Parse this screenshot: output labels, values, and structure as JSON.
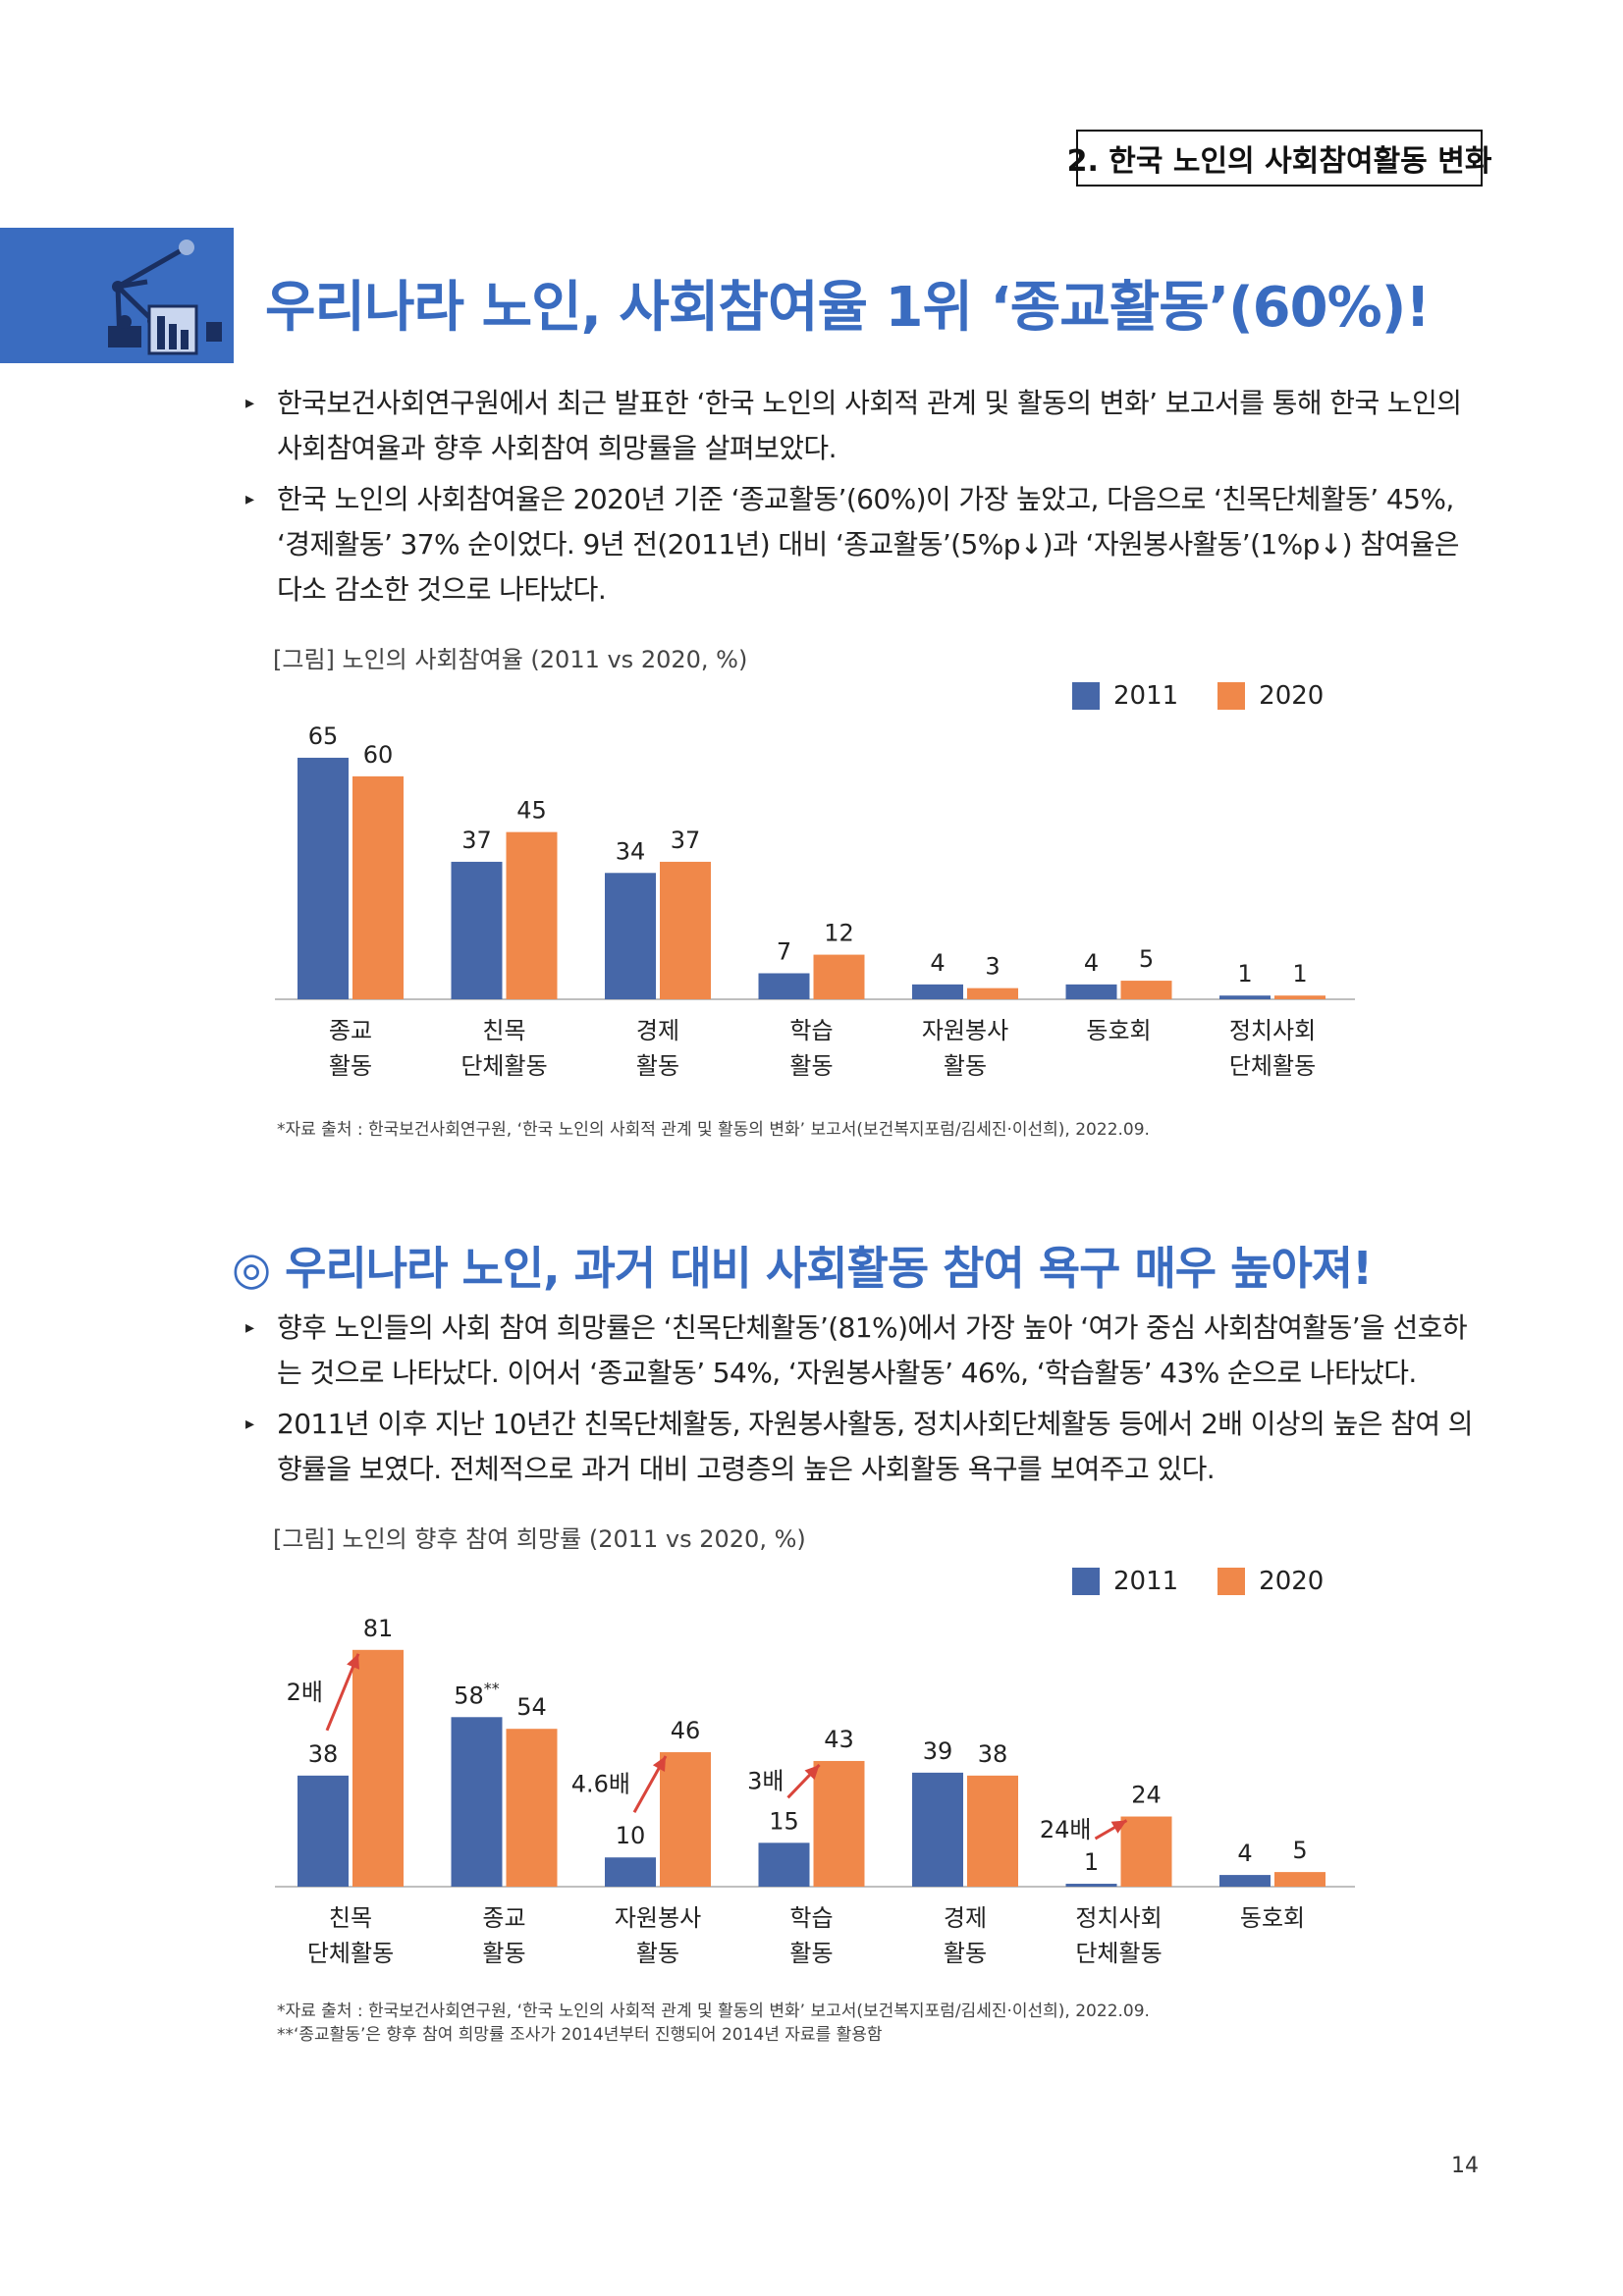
{
  "section_label": "2. 한국 노인의 사회참여활동 변화",
  "hero_title": "우리나라 노인, 사회참여율 1위 ‘종교활동’(60%)!",
  "section1_bullets": [
    "한국보건사회연구원에서 최근 발표한 ‘한국 노인의 사회적 관계 및 활동의 변화’ 보고서를 통해 한국 노인의 사회참여율과 향후 사회참여 희망률을 살펴보았다.",
    "한국 노인의 사회참여율은 2020년 기준 ‘종교활동’(60%)이 가장 높았고, 다음으로 ‘친목단체활동’ 45%, ‘경제활동’ 37% 순이었다. 9년 전(2011년) 대비 ‘종교활동’(5%p↓)과 ‘자원봉사활동’(1%p↓) 참여율은 다소 감소한 것으로 나타났다."
  ],
  "chart1_caption": "[그림] 노인의 사회참여율 (2011 vs 2020, %)",
  "chart1_note": "*자료 출처 : 한국보건사회연구원, ‘한국 노인의 사회적 관계 및 활동의 변화’ 보고서(보건복지포럼/김세진·이선희), 2022.09.",
  "section2_title": "◎ 우리나라 노인, 과거 대비 사회활동 참여 욕구 매우 높아져!",
  "section2_bullets": [
    "향후 노인들의 사회 참여 희망률은 ‘친목단체활동’(81%)에서 가장 높아 ‘여가 중심 사회참여활동’을 선호하는 것으로 나타났다. 이어서 ‘종교활동’ 54%, ‘자원봉사활동’ 46%, ‘학습활동’ 43% 순으로 나타났다.",
    "2011년 이후 지난 10년간 친목단체활동, 자원봉사활동, 정치사회단체활동 등에서 2배 이상의 높은 참여 의향률을 보였다. 전체적으로 과거 대비 고령층의 높은 사회활동 욕구를 보여주고 있다."
  ],
  "chart2_caption": "[그림] 노인의 향후 참여 희망률 (2011 vs 2020, %)",
  "chart2_note1": "*자료 출처 : 한국보건사회연구원, ‘한국 노인의 사회적 관계 및 활동의 변화’ 보고서(보건복지포럼/김세진·이선희), 2022.09.",
  "chart2_note2": "**‘종교활동’은 향후 참여 희망률 조사가 2014년부터 진행되어 2014년 자료를 활용함",
  "page_number": "14",
  "colors": {
    "s2011": "#4667a8",
    "s2020": "#f0884a",
    "accent": "#3a6cc0",
    "arrow": "#d9453b"
  },
  "chart_data": [
    {
      "type": "bar",
      "title": "[그림] 노인의 사회참여율 (2011 vs 2020, %)",
      "categories": [
        [
          "종교",
          "활동"
        ],
        [
          "친목",
          "단체활동"
        ],
        [
          "경제",
          "활동"
        ],
        [
          "학습",
          "활동"
        ],
        [
          "자원봉사",
          "활동"
        ],
        [
          "동호회",
          ""
        ],
        [
          "정치사회",
          "단체활동"
        ]
      ],
      "series": [
        {
          "name": "2011",
          "values": [
            65,
            37,
            34,
            7,
            4,
            4,
            1
          ]
        },
        {
          "name": "2020",
          "values": [
            60,
            45,
            37,
            12,
            3,
            5,
            1
          ]
        }
      ],
      "value_labels": {
        "2011": [
          "65",
          "37",
          "34",
          "7",
          "4",
          "4",
          "1"
        ],
        "2020": [
          "60",
          "45",
          "37",
          "12",
          "3",
          "5",
          "1"
        ]
      },
      "ylim": [
        0,
        70
      ],
      "legend": "top-right",
      "grid": false
    },
    {
      "type": "bar",
      "title": "[그림] 노인의 향후 참여 희망률 (2011 vs 2020, %)",
      "categories": [
        [
          "친목",
          "단체활동"
        ],
        [
          "종교",
          "활동"
        ],
        [
          "자원봉사",
          "활동"
        ],
        [
          "학습",
          "활동"
        ],
        [
          "경제",
          "활동"
        ],
        [
          "정치사회",
          "단체활동"
        ],
        [
          "동호회",
          ""
        ]
      ],
      "series": [
        {
          "name": "2011",
          "values": [
            38,
            58,
            10,
            15,
            39,
            1,
            4
          ]
        },
        {
          "name": "2020",
          "values": [
            81,
            54,
            46,
            43,
            38,
            24,
            5
          ]
        }
      ],
      "value_labels": {
        "2011": [
          "38",
          "58**",
          "10",
          "15",
          "39",
          "1",
          "4"
        ],
        "2020": [
          "81",
          "54",
          "46",
          "43",
          "38",
          "24",
          "5"
        ]
      },
      "annotations": [
        "2배",
        "",
        "4.6배",
        "3배",
        "",
        "24배",
        ""
      ],
      "ylim": [
        0,
        90
      ],
      "legend": "top-right",
      "grid": false
    }
  ]
}
